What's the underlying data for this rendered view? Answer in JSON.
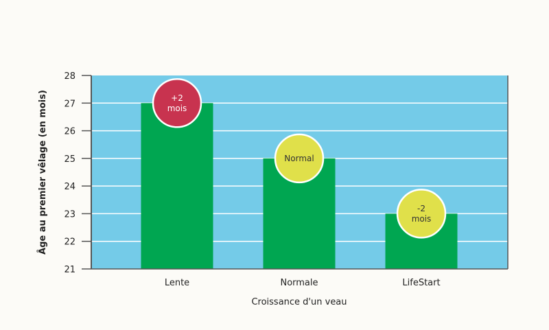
{
  "chart_data": {
    "type": "bar",
    "title": "",
    "xlabel": "Croissance d'un veau",
    "ylabel": "Âge au premier vêlage (en mois)",
    "categories": [
      "Lente",
      "Normale",
      "LifeStart"
    ],
    "values": [
      27,
      25,
      23
    ],
    "ylim": [
      21,
      28
    ],
    "yticks": [
      21,
      22,
      23,
      24,
      25,
      26,
      27,
      28
    ],
    "grid": true,
    "annotations": [
      {
        "category": "Lente",
        "lines": [
          "+2",
          "mois"
        ],
        "color": "#c8334f",
        "text_color": "#ffffff"
      },
      {
        "category": "Normale",
        "lines": [
          "Normal"
        ],
        "color": "#e0e04a",
        "text_color": "#333333"
      },
      {
        "category": "LifeStart",
        "lines": [
          "-2",
          "mois"
        ],
        "color": "#e0e04a",
        "text_color": "#333333"
      }
    ],
    "colors": {
      "plot_bg": "#74cbe8",
      "bar": "#00a651",
      "grid": "#ffffff",
      "axis": "#555555"
    }
  }
}
